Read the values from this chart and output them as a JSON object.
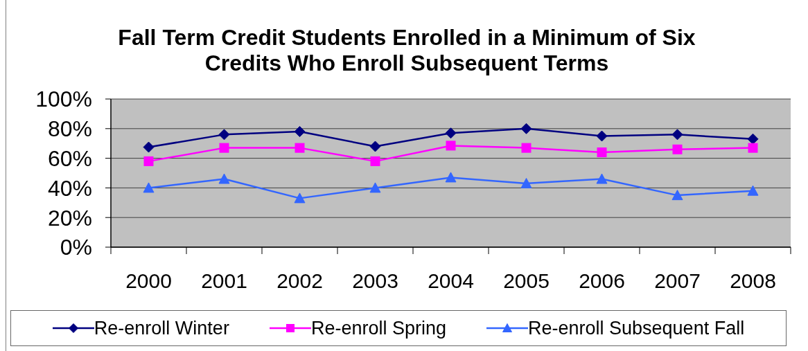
{
  "chart_data": {
    "type": "line",
    "title": "Fall Term Credit Students Enrolled in a Minimum of Six Credits Who Enroll Subsequent Terms",
    "categories": [
      "2000",
      "2001",
      "2002",
      "2003",
      "2004",
      "2005",
      "2006",
      "2007",
      "2008"
    ],
    "series": [
      {
        "name": "Re-enroll Winter",
        "color": "#000080",
        "marker": "diamond",
        "values": [
          67.5,
          76,
          78,
          68,
          77,
          80,
          75,
          76,
          73
        ]
      },
      {
        "name": "Re-enroll Spring",
        "color": "#ff00ff",
        "marker": "square",
        "values": [
          58,
          67,
          67,
          58,
          68.5,
          67,
          64,
          66,
          67
        ]
      },
      {
        "name": "Re-enroll Subsequent Fall",
        "color": "#3366ff",
        "marker": "triangle",
        "values": [
          40,
          46,
          33,
          40,
          47,
          43,
          46,
          35,
          38
        ]
      }
    ],
    "ylim": [
      0,
      100
    ],
    "yticks": [
      {
        "value": 0,
        "label": "0%"
      },
      {
        "value": 20,
        "label": "20%"
      },
      {
        "value": 40,
        "label": "40%"
      },
      {
        "value": 60,
        "label": "60%"
      },
      {
        "value": 80,
        "label": "80%"
      },
      {
        "value": 100,
        "label": "100%"
      }
    ],
    "grid": "y",
    "legend": "bottom"
  }
}
